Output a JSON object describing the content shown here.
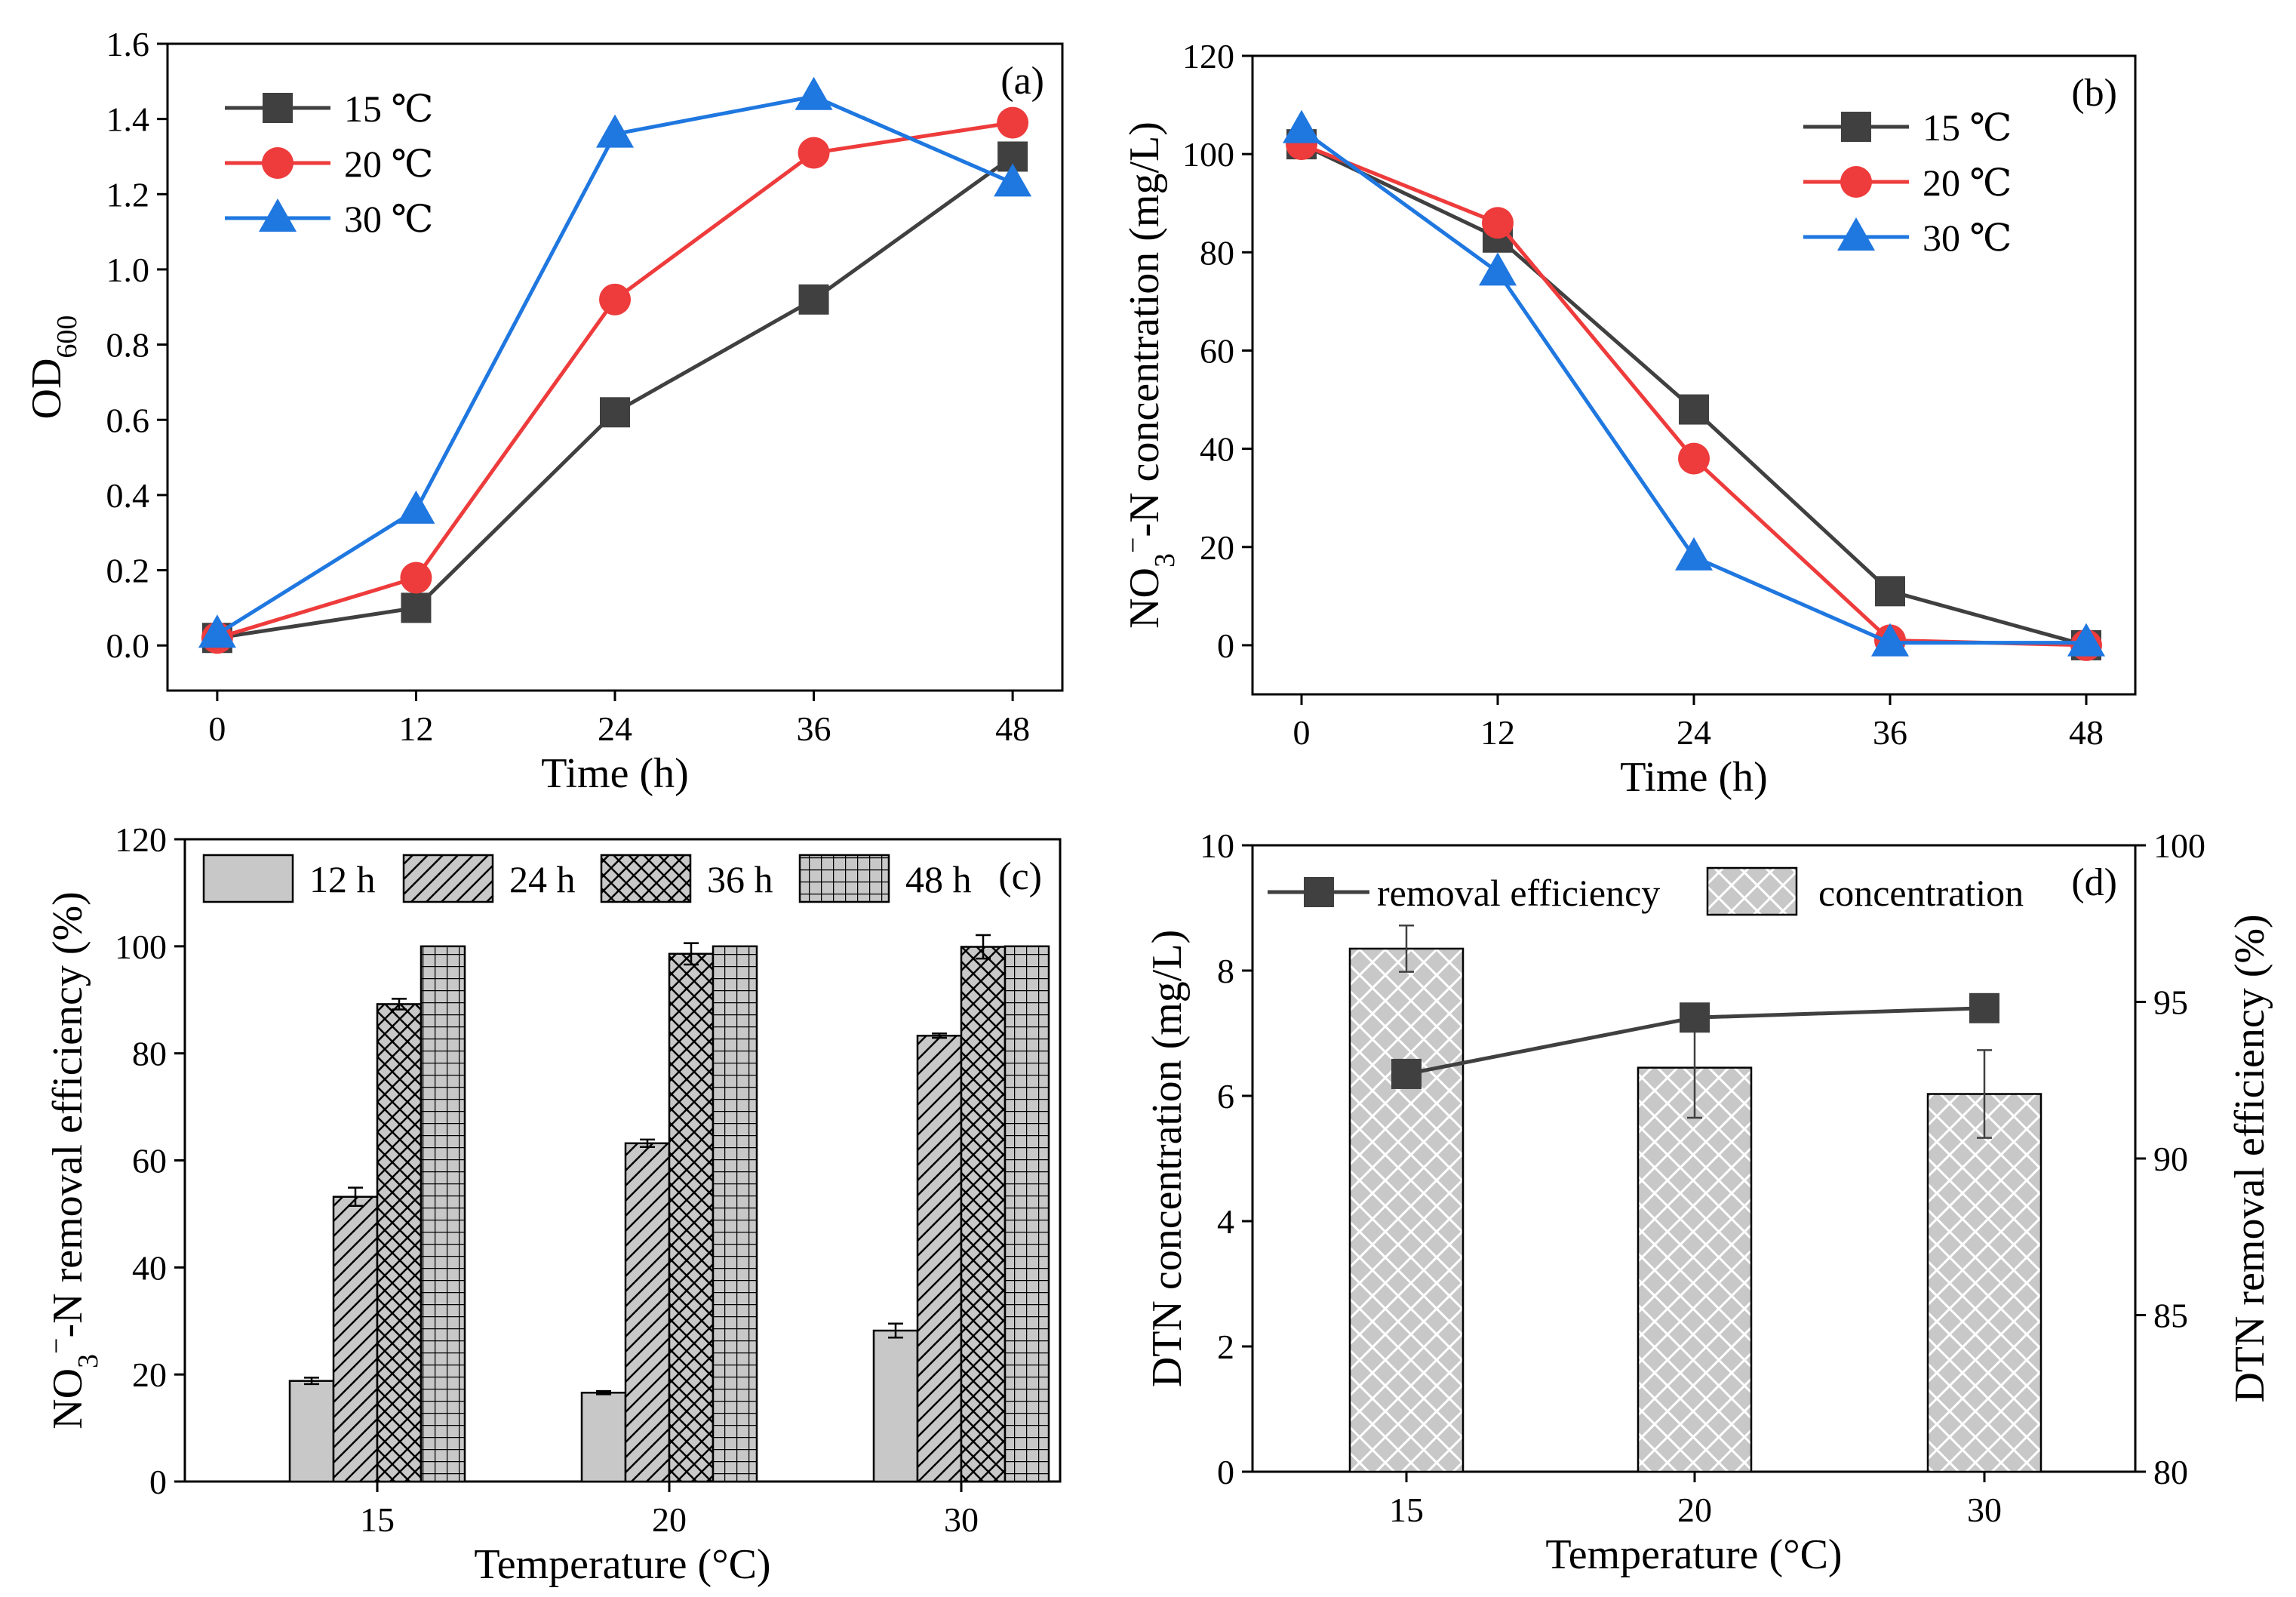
{
  "figure": {
    "colors": {
      "s15": "#404040",
      "s20": "#ee3b3b",
      "s30": "#1f77e0",
      "bar": "#c8c8c8",
      "edge": "#000000"
    }
  },
  "chart_data": [
    {
      "type": "line",
      "panel": "(a)",
      "xlabel": "Time (h)",
      "ylabel_main": "OD",
      "ylabel_sub": "600",
      "x": [
        0,
        12,
        24,
        36,
        48
      ],
      "xlim": [
        -3,
        51
      ],
      "ylim": [
        -0.12,
        1.6
      ],
      "xticks": [
        0,
        12,
        24,
        36,
        48
      ],
      "yticks": [
        0.0,
        0.2,
        0.4,
        0.6,
        0.8,
        1.0,
        1.2,
        1.4,
        1.6
      ],
      "legend_position": "top-left",
      "series": [
        {
          "name": "15 ℃",
          "marker": "square",
          "values": [
            0.02,
            0.1,
            0.62,
            0.92,
            1.3
          ]
        },
        {
          "name": "20 ℃",
          "marker": "circle",
          "values": [
            0.02,
            0.18,
            0.92,
            1.31,
            1.39
          ]
        },
        {
          "name": "30 ℃",
          "marker": "triangle",
          "values": [
            0.03,
            0.36,
            1.36,
            1.46,
            1.23
          ]
        }
      ]
    },
    {
      "type": "line",
      "panel": "(b)",
      "xlabel": "Time (h)",
      "ylabel_pre": "NO",
      "ylabel_sub": "3",
      "ylabel_sup": "−",
      "ylabel_post": "-N concentration (mg/L)",
      "x": [
        0,
        12,
        24,
        36,
        48
      ],
      "xlim": [
        -3,
        51
      ],
      "ylim": [
        -10,
        120
      ],
      "xticks": [
        0,
        12,
        24,
        36,
        48
      ],
      "yticks": [
        0,
        20,
        40,
        60,
        80,
        100,
        120
      ],
      "legend_position": "top-right",
      "series": [
        {
          "name": "15 ℃",
          "marker": "square",
          "values": [
            102,
            83,
            48,
            11,
            0
          ]
        },
        {
          "name": "20 ℃",
          "marker": "circle",
          "values": [
            102,
            86,
            38,
            1,
            0
          ]
        },
        {
          "name": "30 ℃",
          "marker": "triangle",
          "values": [
            105,
            76,
            18,
            0.5,
            0.5
          ]
        }
      ]
    },
    {
      "type": "bar",
      "panel": "(c)",
      "xlabel": "Temperature (°C)",
      "ylabel_pre": "NO",
      "ylabel_sub": "3",
      "ylabel_sup": "−",
      "ylabel_post": "-N removal efficiency (%)",
      "categories": [
        "15",
        "20",
        "30"
      ],
      "ylim": [
        0,
        120
      ],
      "yticks": [
        0,
        20,
        40,
        60,
        80,
        100,
        120
      ],
      "legend_position": "top",
      "series": [
        {
          "name": "12 h",
          "pattern": "solid",
          "values": [
            18.8,
            16.6,
            28.2
          ],
          "errors": [
            0.6,
            0.3,
            1.3
          ]
        },
        {
          "name": "24 h",
          "pattern": "diag",
          "values": [
            53.2,
            63.2,
            83.3
          ],
          "errors": [
            1.7,
            0.7,
            0.4
          ]
        },
        {
          "name": "36 h",
          "pattern": "cross",
          "values": [
            89.2,
            98.6,
            99.9
          ],
          "errors": [
            1.0,
            2.0,
            2.2
          ]
        },
        {
          "name": "48 h",
          "pattern": "grid",
          "values": [
            100,
            100,
            100
          ],
          "errors": [
            0,
            0,
            0
          ]
        }
      ]
    },
    {
      "type": "bar",
      "panel": "(d)",
      "xlabel": "Temperature (°C)",
      "ylabel": "DTN concentration (mg/L)",
      "ylabel_right": "DTN removal efficiency (%)",
      "categories": [
        "15",
        "20",
        "30"
      ],
      "ylim": [
        0,
        10
      ],
      "yticks": [
        0,
        2,
        4,
        6,
        8,
        10
      ],
      "ylim_right": [
        80,
        100
      ],
      "yticks_right": [
        80,
        85,
        90,
        95,
        100
      ],
      "legend_position": "top",
      "bars": {
        "name": "concentration",
        "values": [
          8.35,
          6.45,
          6.03
        ],
        "errors": [
          0.37,
          0.8,
          0.7
        ]
      },
      "line": {
        "name": "removal efficiency",
        "values": [
          92.7,
          94.5,
          94.8
        ]
      }
    }
  ]
}
